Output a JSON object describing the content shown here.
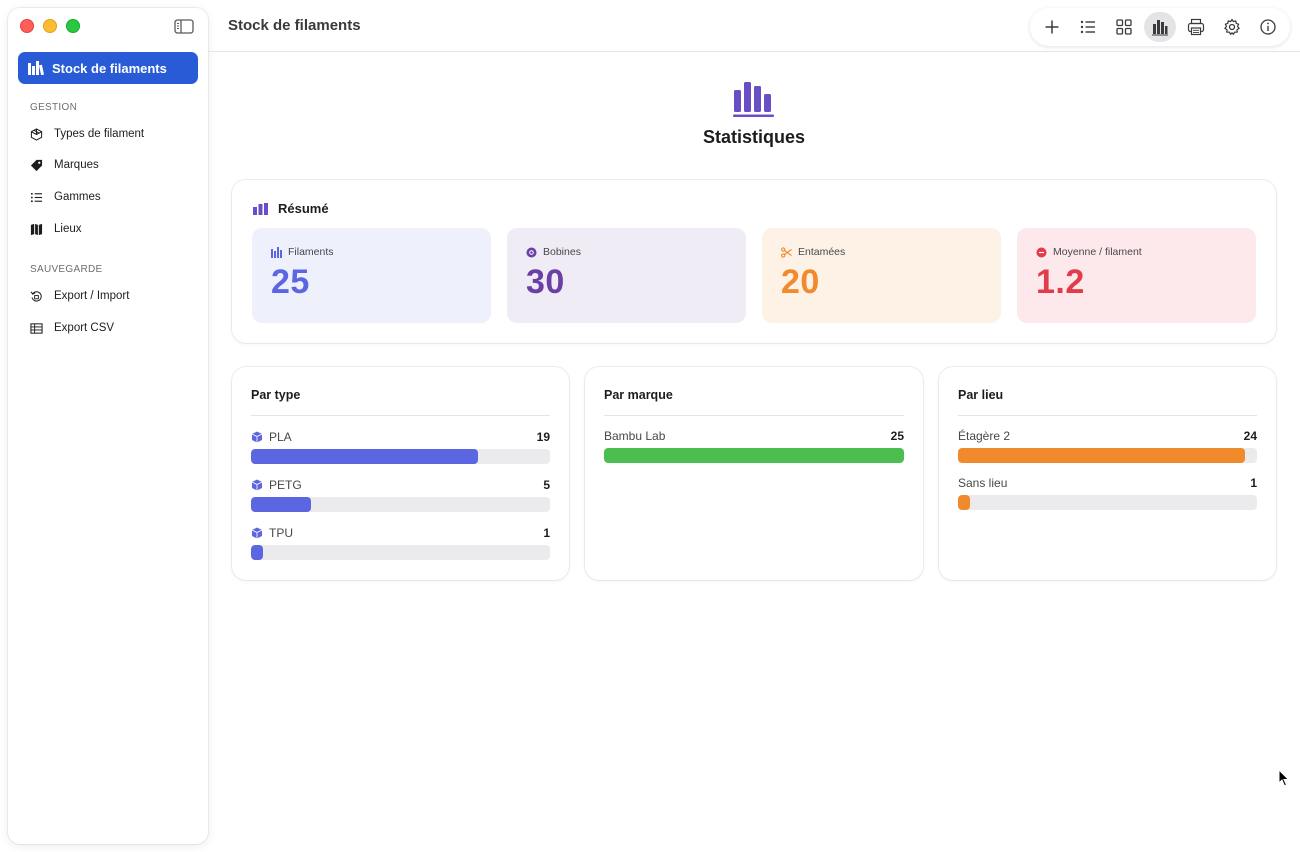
{
  "window": {
    "title": "Stock de filaments"
  },
  "sidebar": {
    "active_item": "Stock de filaments",
    "sections": [
      {
        "label": "GESTION",
        "items": [
          {
            "label": "Types de filament",
            "icon": "cube-icon"
          },
          {
            "label": "Marques",
            "icon": "tag-icon"
          },
          {
            "label": "Gammes",
            "icon": "list-icon"
          },
          {
            "label": "Lieux",
            "icon": "map-icon"
          }
        ]
      },
      {
        "label": "SAUVEGARDE",
        "items": [
          {
            "label": "Export / Import",
            "icon": "clock-arrow-icon"
          },
          {
            "label": "Export CSV",
            "icon": "table-icon"
          }
        ]
      }
    ]
  },
  "toolbar": {
    "buttons": [
      "plus-icon",
      "list-icon",
      "grid-icon",
      "chart-icon",
      "print-icon",
      "gear-icon",
      "info-icon"
    ],
    "active": "chart-icon"
  },
  "page": {
    "title": "Statistiques"
  },
  "summary": {
    "title": "Résumé",
    "stats": [
      {
        "label": "Filaments",
        "value": "25",
        "color": "#5b66e0",
        "bg": "#eef0fc"
      },
      {
        "label": "Bobines",
        "value": "30",
        "color": "#6a3fa6",
        "bg": "#f0ecf5"
      },
      {
        "label": "Entamées",
        "value": "20",
        "color": "#f08a2c",
        "bg": "#fef2e6"
      },
      {
        "label": "Moyenne / filament",
        "value": "1.2",
        "color": "#e23b4a",
        "bg": "#fde9ec"
      }
    ]
  },
  "by_type": {
    "title": "Par type",
    "color": "#5b66e0",
    "max": 25,
    "rows": [
      {
        "label": "PLA",
        "count": 19
      },
      {
        "label": "PETG",
        "count": 5
      },
      {
        "label": "TPU",
        "count": 1
      }
    ]
  },
  "by_brand": {
    "title": "Par marque",
    "color": "#4cbd4f",
    "max": 25,
    "rows": [
      {
        "label": "Bambu Lab",
        "count": 25
      }
    ]
  },
  "by_location": {
    "title": "Par lieu",
    "color": "#f08a2c",
    "max": 25,
    "rows": [
      {
        "label": "Étagère 2",
        "count": 24
      },
      {
        "label": "Sans lieu",
        "count": 1
      }
    ]
  }
}
